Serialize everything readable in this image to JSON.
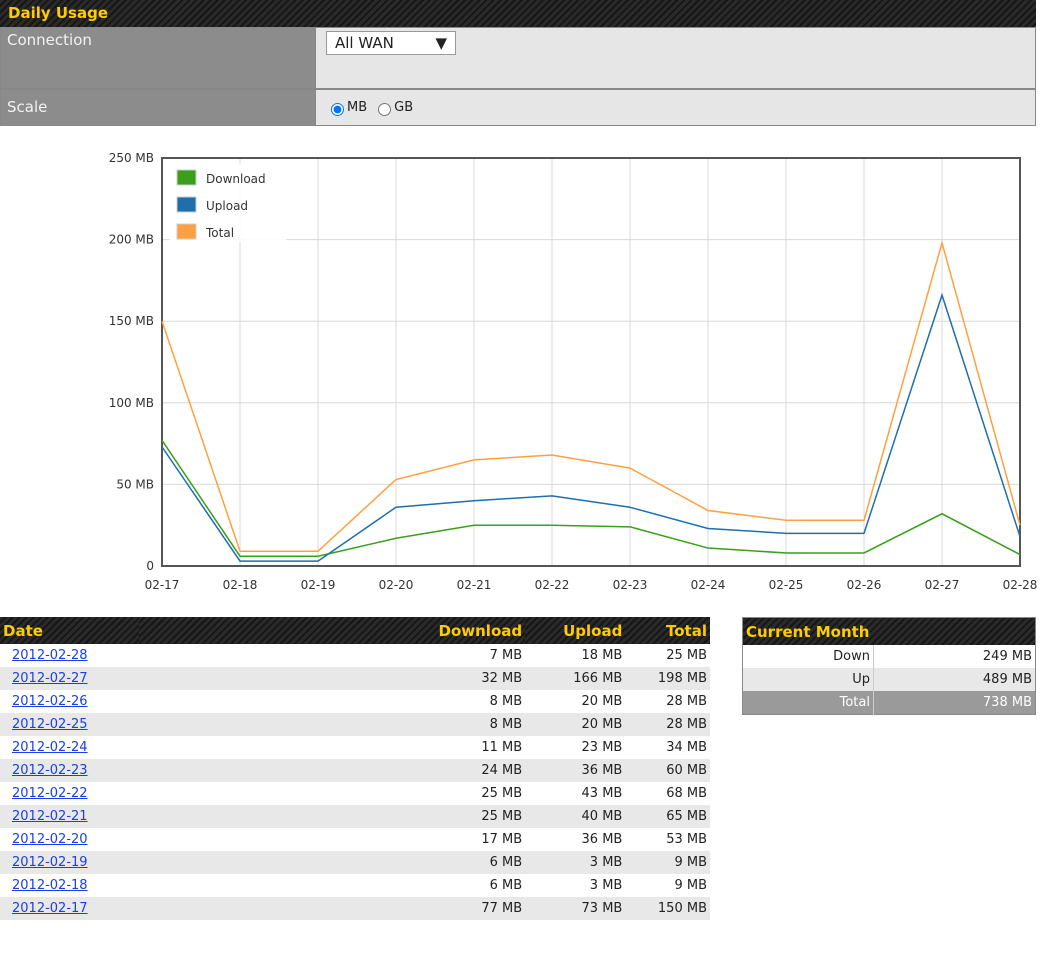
{
  "header": {
    "title": "Daily Usage"
  },
  "settings": {
    "connection_label": "Connection",
    "connection_value": "All WAN",
    "scale_label": "Scale",
    "scale_options": [
      "MB",
      "GB"
    ]
  },
  "chart_data": {
    "type": "line",
    "categories": [
      "02-17",
      "02-18",
      "02-19",
      "02-20",
      "02-21",
      "02-22",
      "02-23",
      "02-24",
      "02-25",
      "02-26",
      "02-27",
      "02-28"
    ],
    "series": [
      {
        "name": "Download",
        "color": "#3a9f1a",
        "values": [
          77,
          6,
          6,
          17,
          25,
          25,
          24,
          11,
          8,
          8,
          32,
          7
        ]
      },
      {
        "name": "Upload",
        "color": "#1f6fad",
        "values": [
          73,
          3,
          3,
          36,
          40,
          43,
          36,
          23,
          20,
          20,
          166,
          18
        ]
      },
      {
        "name": "Total",
        "color": "#ffa040",
        "values": [
          150,
          9,
          9,
          53,
          65,
          68,
          60,
          34,
          28,
          28,
          198,
          25
        ]
      }
    ],
    "ylim": [
      0,
      250
    ],
    "yticks": [
      0,
      {
        "value": 50,
        "label": "50 MB"
      },
      {
        "value": 100,
        "label": "100 MB"
      },
      {
        "value": 150,
        "label": "150 MB"
      },
      {
        "value": 200,
        "label": "200 MB"
      },
      {
        "value": 250,
        "label": "250 MB"
      }
    ],
    "grid": true,
    "legend": "upper left"
  },
  "daily_table": {
    "columns": [
      "Date",
      "Download",
      "Upload",
      "Total"
    ],
    "rows": [
      [
        "2012-02-28",
        "7 MB",
        "18 MB",
        "25 MB"
      ],
      [
        "2012-02-27",
        "32 MB",
        "166 MB",
        "198 MB"
      ],
      [
        "2012-02-26",
        "8 MB",
        "20 MB",
        "28 MB"
      ],
      [
        "2012-02-25",
        "8 MB",
        "20 MB",
        "28 MB"
      ],
      [
        "2012-02-24",
        "11 MB",
        "23 MB",
        "34 MB"
      ],
      [
        "2012-02-23",
        "24 MB",
        "36 MB",
        "60 MB"
      ],
      [
        "2012-02-22",
        "25 MB",
        "43 MB",
        "68 MB"
      ],
      [
        "2012-02-21",
        "25 MB",
        "40 MB",
        "65 MB"
      ],
      [
        "2012-02-20",
        "17 MB",
        "36 MB",
        "53 MB"
      ],
      [
        "2012-02-19",
        "6 MB",
        "3 MB",
        "9 MB"
      ],
      [
        "2012-02-18",
        "6 MB",
        "3 MB",
        "9 MB"
      ],
      [
        "2012-02-17",
        "77 MB",
        "73 MB",
        "150 MB"
      ]
    ]
  },
  "month_table": {
    "title": "Current Month",
    "rows": [
      [
        "Down",
        "249 MB"
      ],
      [
        "Up",
        "489 MB"
      ],
      [
        "Total",
        "738 MB"
      ]
    ]
  }
}
